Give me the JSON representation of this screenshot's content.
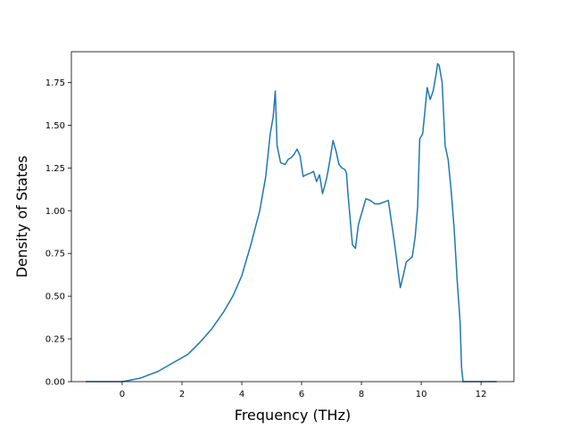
{
  "chart_data": {
    "type": "line",
    "title": "",
    "xlabel": "Frequency (THz)",
    "ylabel": "Density of States",
    "xlim": [
      -1.7,
      13.1
    ],
    "ylim": [
      0.0,
      1.93
    ],
    "xticks": [
      0,
      2,
      4,
      6,
      8,
      10,
      12
    ],
    "xtick_labels": [
      "0",
      "2",
      "4",
      "6",
      "8",
      "10",
      "12"
    ],
    "yticks": [
      0.0,
      0.25,
      0.5,
      0.75,
      1.0,
      1.25,
      1.5,
      1.75
    ],
    "ytick_labels": [
      "0.00",
      "0.25",
      "0.50",
      "0.75",
      "1.00",
      "1.25",
      "1.50",
      "1.75"
    ],
    "grid": false,
    "line_color": "#1f77b4",
    "series": [
      {
        "x": [
          -1.2,
          -0.5,
          0.0,
          0.3,
          0.6,
          0.9,
          1.2,
          1.5,
          1.8,
          2.2,
          2.6,
          3.0,
          3.4,
          3.7,
          4.0,
          4.3,
          4.6,
          4.8,
          4.95,
          5.05,
          5.12,
          5.18,
          5.3,
          5.45,
          5.55,
          5.65,
          5.75,
          5.85,
          5.95,
          6.05,
          6.15,
          6.3,
          6.4,
          6.5,
          6.6,
          6.7,
          6.78,
          6.85,
          6.95,
          7.05,
          7.15,
          7.25,
          7.35,
          7.45,
          7.5,
          7.55,
          7.6,
          7.7,
          7.8,
          7.9,
          8.0,
          8.15,
          8.3,
          8.45,
          8.6,
          8.75,
          8.9,
          9.1,
          9.3,
          9.4,
          9.5,
          9.7,
          9.8,
          9.88,
          9.95,
          10.05,
          10.2,
          10.3,
          10.4,
          10.5,
          10.55,
          10.6,
          10.7,
          10.8,
          10.9,
          11.0,
          11.1,
          11.2,
          11.3,
          11.35,
          11.4,
          11.6,
          12.0,
          12.5
        ],
        "y": [
          0.0,
          0.0,
          0.0,
          0.01,
          0.02,
          0.04,
          0.06,
          0.09,
          0.12,
          0.16,
          0.23,
          0.31,
          0.41,
          0.5,
          0.62,
          0.8,
          1.0,
          1.2,
          1.45,
          1.55,
          1.7,
          1.38,
          1.28,
          1.27,
          1.3,
          1.31,
          1.33,
          1.36,
          1.32,
          1.2,
          1.21,
          1.22,
          1.23,
          1.17,
          1.21,
          1.1,
          1.15,
          1.2,
          1.3,
          1.41,
          1.35,
          1.27,
          1.25,
          1.24,
          1.22,
          1.1,
          1.0,
          0.8,
          0.78,
          0.92,
          0.98,
          1.07,
          1.06,
          1.04,
          1.04,
          1.05,
          1.06,
          0.82,
          0.55,
          0.62,
          0.7,
          0.73,
          0.85,
          1.02,
          1.42,
          1.45,
          1.72,
          1.65,
          1.7,
          1.8,
          1.86,
          1.85,
          1.75,
          1.38,
          1.3,
          1.12,
          0.9,
          0.6,
          0.35,
          0.08,
          0.0,
          0.0,
          0.0,
          0.0
        ]
      }
    ]
  }
}
